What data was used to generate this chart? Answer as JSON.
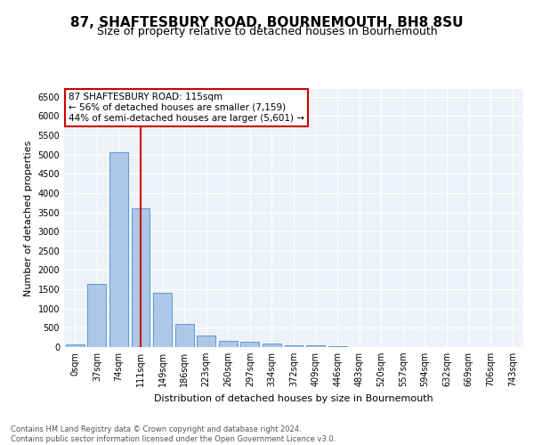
{
  "title1": "87, SHAFTESBURY ROAD, BOURNEMOUTH, BH8 8SU",
  "title2": "Size of property relative to detached houses in Bournemouth",
  "xlabel": "Distribution of detached houses by size in Bournemouth",
  "ylabel": "Number of detached properties",
  "categories": [
    "0sqm",
    "37sqm",
    "74sqm",
    "111sqm",
    "149sqm",
    "186sqm",
    "223sqm",
    "260sqm",
    "297sqm",
    "334sqm",
    "372sqm",
    "409sqm",
    "446sqm",
    "483sqm",
    "520sqm",
    "557sqm",
    "594sqm",
    "632sqm",
    "669sqm",
    "706sqm",
    "743sqm"
  ],
  "bar_values": [
    70,
    1650,
    5050,
    3600,
    1420,
    600,
    300,
    165,
    130,
    100,
    50,
    50,
    30,
    0,
    0,
    0,
    0,
    0,
    0,
    0,
    0
  ],
  "bar_color": "#aec6e8",
  "bar_edge_color": "#5b9bd5",
  "vline_x_index": 3,
  "vline_color": "#cc0000",
  "annotation_title": "87 SHAFTESBURY ROAD: 115sqm",
  "annotation_line1": "← 56% of detached houses are smaller (7,159)",
  "annotation_line2": "44% of semi-detached houses are larger (5,601) →",
  "annotation_box_color": "#cc0000",
  "ylim": [
    0,
    6700
  ],
  "yticks": [
    0,
    500,
    1000,
    1500,
    2000,
    2500,
    3000,
    3500,
    4000,
    4500,
    5000,
    5500,
    6000,
    6500
  ],
  "footer_line1": "Contains HM Land Registry data © Crown copyright and database right 2024.",
  "footer_line2": "Contains public sector information licensed under the Open Government Licence v3.0.",
  "bg_color": "#eef2f8",
  "title1_fontsize": 11,
  "title2_fontsize": 9,
  "xlabel_fontsize": 8,
  "ylabel_fontsize": 8,
  "tick_fontsize": 7,
  "footer_fontsize": 6
}
